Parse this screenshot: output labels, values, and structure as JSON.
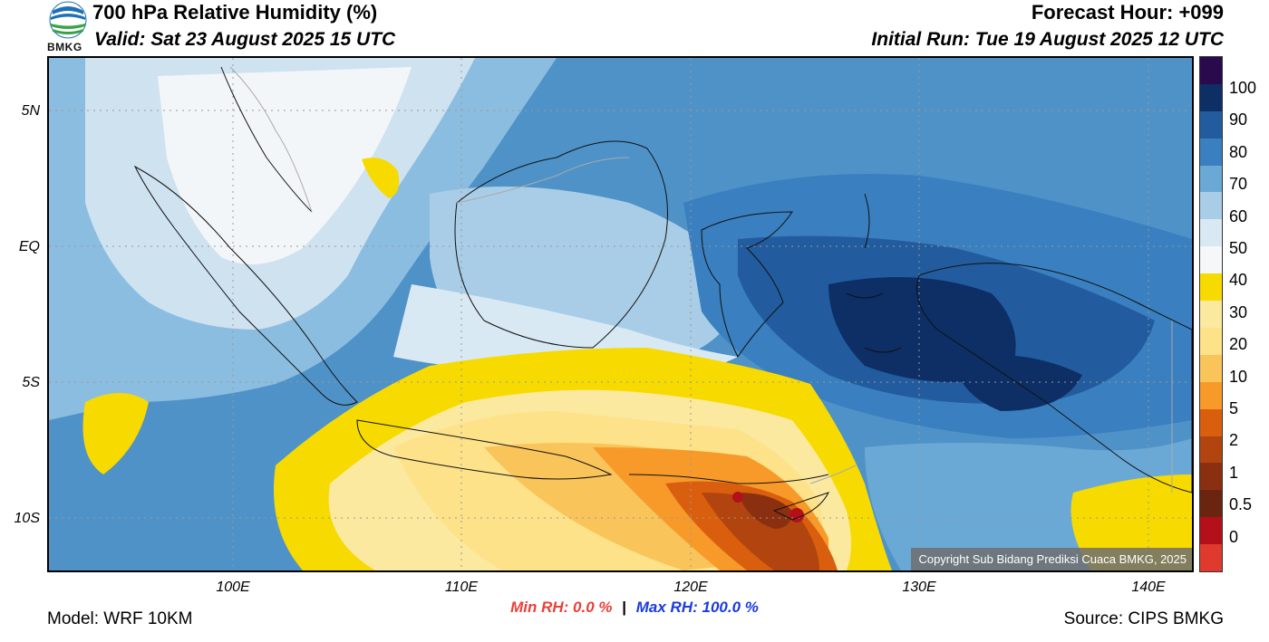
{
  "header": {
    "title": "700 hPa Relative Humidity (%)",
    "valid": "Valid: Sat 23 August 2025 15 UTC",
    "forecast_hour": "Forecast Hour: +099",
    "initial_run": "Initial Run: Tue 19 August 2025 12 UTC",
    "logo_text": "BMKG"
  },
  "map": {
    "copyright": "Copyright Sub Bidang Prediksi Cuaca BMKG, 2025",
    "lat_labels": [
      "5N",
      "EQ",
      "5S",
      "10S"
    ],
    "lon_labels": [
      "100E",
      "110E",
      "120E",
      "130E",
      "140E"
    ]
  },
  "colorbar": {
    "labels": [
      "100",
      "90",
      "80",
      "70",
      "60",
      "50",
      "40",
      "30",
      "20",
      "10",
      "5",
      "2",
      "1",
      "0.5",
      "0"
    ],
    "colors": [
      "#2a0a4d",
      "#0d2f66",
      "#225c9e",
      "#3a7fbf",
      "#6aa9d6",
      "#a9cde6",
      "#d9e9f3",
      "#f5f7f9",
      "#f7da00",
      "#fbe9a0",
      "#fde28a",
      "#f9c45a",
      "#f79a2a",
      "#d95f0e",
      "#b2440f",
      "#8a3010",
      "#6a2410",
      "#b3101a",
      "#e03a2e"
    ]
  },
  "stats": {
    "min_label": "Min RH:",
    "min_value": "0.0 %",
    "separator": "|",
    "max_label": "Max RH:",
    "max_value": "100.0 %"
  },
  "footer": {
    "model": "Model: WRF 10KM",
    "source": "Source: CIPS BMKG"
  }
}
